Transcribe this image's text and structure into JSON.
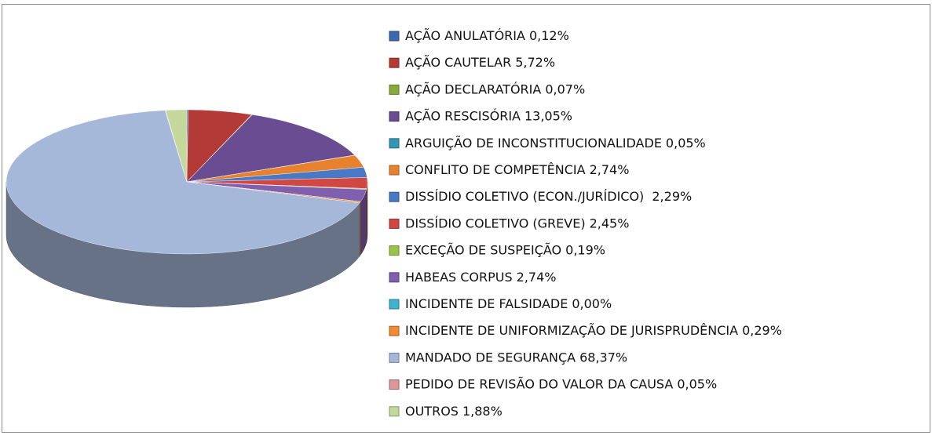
{
  "chart_data": {
    "type": "pie",
    "categories": [
      "AÇÃO ANULATÓRIA",
      "AÇÃO CAUTELAR",
      "AÇÃO DECLARATÓRIA",
      "AÇÃO RESCISÓRIA",
      "ARGUIÇÃO DE INCONSTITUCIONALIDADE",
      "CONFLITO DE COMPETÊNCIA",
      "DISSÍDIO COLETIVO (ECON./JURÍDICO) ",
      "DISSÍDIO COLETIVO (GREVE)",
      "EXCEÇÃO DE SUSPEIÇÃO",
      "HABEAS CORPUS",
      "INCIDENTE DE FALSIDADE",
      "INCIDENTE DE UNIFORMIZAÇÃO DE JURISPRUDÊNCIA",
      "MANDADO DE SEGURANÇA",
      "PEDIDO DE REVISÃO DO VALOR DA CAUSA",
      "OUTROS"
    ],
    "values": [
      0.12,
      5.72,
      0.07,
      13.05,
      0.05,
      2.74,
      2.29,
      2.45,
      0.19,
      2.74,
      0.0,
      0.29,
      68.37,
      0.05,
      1.88
    ],
    "value_labels": [
      "0,12%",
      "5,72%",
      "0,07%",
      "13,05%",
      "0,05%",
      "2,74%",
      "2,29%",
      "2,45%",
      "0,19%",
      "2,74%",
      "0,00%",
      "0,29%",
      "68,37%",
      "0,05%",
      "1,88%"
    ],
    "colors": [
      "#3c68b0",
      "#b33a36",
      "#88aa3c",
      "#6a4c92",
      "#3497b2",
      "#e6822e",
      "#4978c4",
      "#d14744",
      "#9cc24a",
      "#7f5fae",
      "#3fb2cf",
      "#f08b33",
      "#a6b8da",
      "#dc9896",
      "#c4d89c"
    ]
  }
}
